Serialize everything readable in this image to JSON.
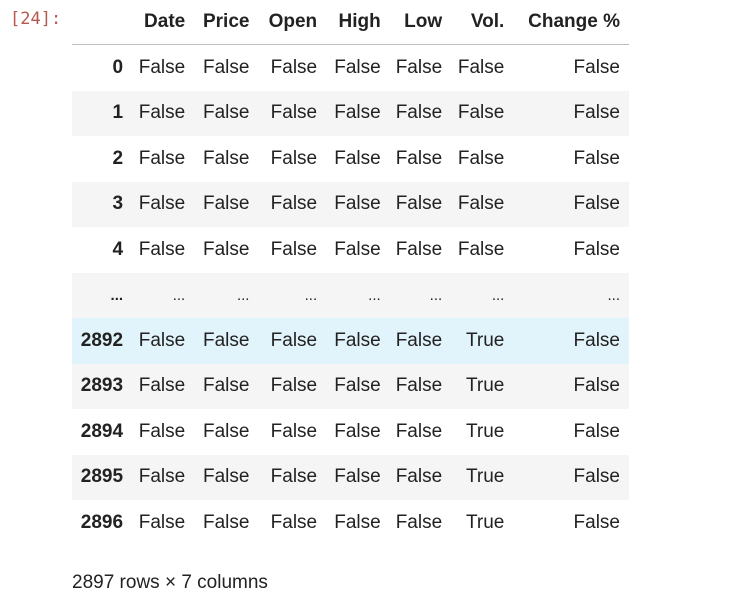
{
  "cell": {
    "prompt": "[24]:"
  },
  "dataframe": {
    "columns": [
      "",
      "Date",
      "Price",
      "Open",
      "High",
      "Low",
      "Vol.",
      "Change %"
    ],
    "rows": [
      {
        "index": "0",
        "values": [
          "False",
          "False",
          "False",
          "False",
          "False",
          "False",
          "False"
        ]
      },
      {
        "index": "1",
        "values": [
          "False",
          "False",
          "False",
          "False",
          "False",
          "False",
          "False"
        ]
      },
      {
        "index": "2",
        "values": [
          "False",
          "False",
          "False",
          "False",
          "False",
          "False",
          "False"
        ]
      },
      {
        "index": "3",
        "values": [
          "False",
          "False",
          "False",
          "False",
          "False",
          "False",
          "False"
        ]
      },
      {
        "index": "4",
        "values": [
          "False",
          "False",
          "False",
          "False",
          "False",
          "False",
          "False"
        ]
      },
      {
        "index": "...",
        "values": [
          "...",
          "...",
          "...",
          "...",
          "...",
          "...",
          "..."
        ]
      },
      {
        "index": "2892",
        "values": [
          "False",
          "False",
          "False",
          "False",
          "False",
          "True",
          "False"
        ]
      },
      {
        "index": "2893",
        "values": [
          "False",
          "False",
          "False",
          "False",
          "False",
          "True",
          "False"
        ]
      },
      {
        "index": "2894",
        "values": [
          "False",
          "False",
          "False",
          "False",
          "False",
          "True",
          "False"
        ]
      },
      {
        "index": "2895",
        "values": [
          "False",
          "False",
          "False",
          "False",
          "False",
          "True",
          "False"
        ]
      },
      {
        "index": "2896",
        "values": [
          "False",
          "False",
          "False",
          "False",
          "False",
          "True",
          "False"
        ]
      }
    ],
    "highlighted_row": "2892",
    "shape_text": "2897 rows × 7 columns"
  },
  "colors": {
    "prompt": "#b5584d",
    "row_stripe": "#f5f5f5",
    "row_highlight": "#e1f4fb",
    "header_border": "#bdbdbd"
  }
}
